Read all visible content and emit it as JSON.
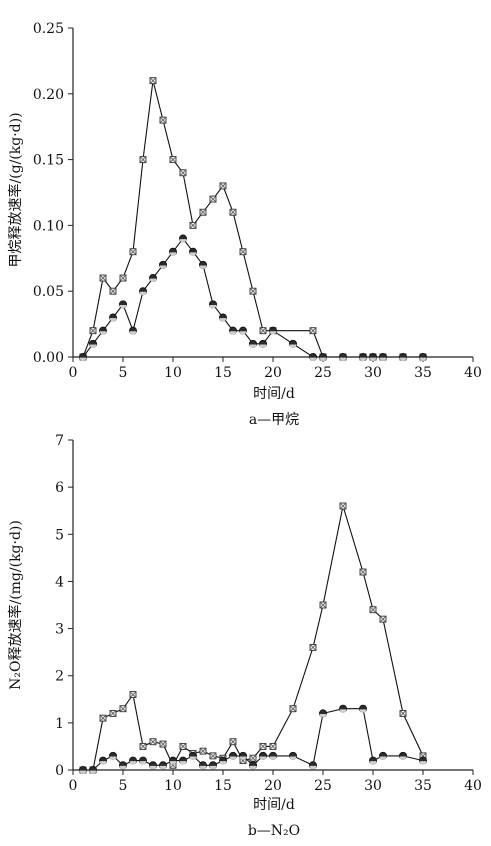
{
  "chart_data": [
    {
      "type": "line",
      "caption": "a—甲烷",
      "xlabel": "时间/d",
      "ylabel": "甲烷释放速率/(g/(kg·d))",
      "xlim": [
        0,
        40
      ],
      "ylim": [
        0,
        0.25
      ],
      "xticks": [
        "0",
        "5",
        "10",
        "15",
        "20",
        "25",
        "30",
        "35",
        "40"
      ],
      "yticks": [
        "0.00",
        "0.05",
        "0.10",
        "0.15",
        "0.20",
        "0.25"
      ],
      "grid": false,
      "series": [
        {
          "marker": "cross-square",
          "points": [
            [
              1,
              0.0
            ],
            [
              2,
              0.02
            ],
            [
              3,
              0.06
            ],
            [
              4,
              0.05
            ],
            [
              5,
              0.06
            ],
            [
              6,
              0.08
            ],
            [
              7,
              0.15
            ],
            [
              8,
              0.21
            ],
            [
              9,
              0.18
            ],
            [
              10,
              0.15
            ],
            [
              11,
              0.14
            ],
            [
              12,
              0.1
            ],
            [
              13,
              0.11
            ],
            [
              14,
              0.12
            ],
            [
              15,
              0.13
            ],
            [
              16,
              0.11
            ],
            [
              17,
              0.08
            ],
            [
              18,
              0.05
            ],
            [
              19,
              0.02
            ],
            [
              20,
              0.02
            ],
            [
              24,
              0.02
            ],
            [
              25,
              0.0
            ],
            [
              27,
              0.0
            ],
            [
              29,
              0.0
            ],
            [
              30,
              0.0
            ],
            [
              31,
              0.0
            ],
            [
              33,
              0.0
            ],
            [
              35,
              0.0
            ]
          ]
        },
        {
          "marker": "filled-circle",
          "points": [
            [
              1,
              0.0
            ],
            [
              2,
              0.01
            ],
            [
              3,
              0.02
            ],
            [
              4,
              0.03
            ],
            [
              5,
              0.04
            ],
            [
              6,
              0.02
            ],
            [
              7,
              0.05
            ],
            [
              8,
              0.06
            ],
            [
              9,
              0.07
            ],
            [
              10,
              0.08
            ],
            [
              11,
              0.09
            ],
            [
              12,
              0.08
            ],
            [
              13,
              0.07
            ],
            [
              14,
              0.04
            ],
            [
              15,
              0.03
            ],
            [
              16,
              0.02
            ],
            [
              17,
              0.02
            ],
            [
              18,
              0.01
            ],
            [
              19,
              0.01
            ],
            [
              20,
              0.02
            ],
            [
              22,
              0.01
            ],
            [
              24,
              0.0
            ],
            [
              25,
              0.0
            ],
            [
              27,
              0.0
            ],
            [
              29,
              0.0
            ],
            [
              30,
              0.0
            ],
            [
              31,
              0.0
            ],
            [
              33,
              0.0
            ],
            [
              35,
              0.0
            ]
          ]
        }
      ]
    },
    {
      "type": "line",
      "caption": "b—N₂O",
      "xlabel": "时间/d",
      "ylabel": "N₂O释放速率/(mg/(kg·d))",
      "xlim": [
        0,
        40
      ],
      "ylim": [
        0,
        7
      ],
      "xticks": [
        "0",
        "5",
        "10",
        "15",
        "20",
        "25",
        "30",
        "35",
        "40"
      ],
      "yticks": [
        "0",
        "1",
        "2",
        "3",
        "4",
        "5",
        "6",
        "7"
      ],
      "grid": false,
      "series": [
        {
          "marker": "cross-square",
          "points": [
            [
              1,
              0.0
            ],
            [
              2,
              0.0
            ],
            [
              3,
              1.1
            ],
            [
              4,
              1.2
            ],
            [
              5,
              1.3
            ],
            [
              6,
              1.6
            ],
            [
              7,
              0.5
            ],
            [
              8,
              0.6
            ],
            [
              9,
              0.55
            ],
            [
              10,
              0.1
            ],
            [
              11,
              0.5
            ],
            [
              12,
              0.35
            ],
            [
              13,
              0.4
            ],
            [
              14,
              0.3
            ],
            [
              15,
              0.25
            ],
            [
              16,
              0.6
            ],
            [
              17,
              0.2
            ],
            [
              18,
              0.25
            ],
            [
              19,
              0.5
            ],
            [
              20,
              0.5
            ],
            [
              22,
              1.3
            ],
            [
              24,
              2.6
            ],
            [
              25,
              3.5
            ],
            [
              27,
              5.6
            ],
            [
              29,
              4.2
            ],
            [
              30,
              3.4
            ],
            [
              31,
              3.2
            ],
            [
              33,
              1.2
            ],
            [
              35,
              0.3
            ]
          ]
        },
        {
          "marker": "filled-circle",
          "points": [
            [
              1,
              0.0
            ],
            [
              2,
              0.0
            ],
            [
              3,
              0.2
            ],
            [
              4,
              0.3
            ],
            [
              5,
              0.1
            ],
            [
              6,
              0.2
            ],
            [
              7,
              0.2
            ],
            [
              8,
              0.1
            ],
            [
              9,
              0.1
            ],
            [
              10,
              0.2
            ],
            [
              11,
              0.2
            ],
            [
              12,
              0.3
            ],
            [
              13,
              0.1
            ],
            [
              14,
              0.1
            ],
            [
              15,
              0.2
            ],
            [
              16,
              0.3
            ],
            [
              17,
              0.3
            ],
            [
              18,
              0.1
            ],
            [
              19,
              0.3
            ],
            [
              20,
              0.3
            ],
            [
              22,
              0.3
            ],
            [
              24,
              0.1
            ],
            [
              25,
              1.2
            ],
            [
              27,
              1.3
            ],
            [
              29,
              1.3
            ],
            [
              30,
              0.2
            ],
            [
              31,
              0.3
            ],
            [
              33,
              0.3
            ],
            [
              35,
              0.2
            ]
          ]
        }
      ]
    }
  ]
}
